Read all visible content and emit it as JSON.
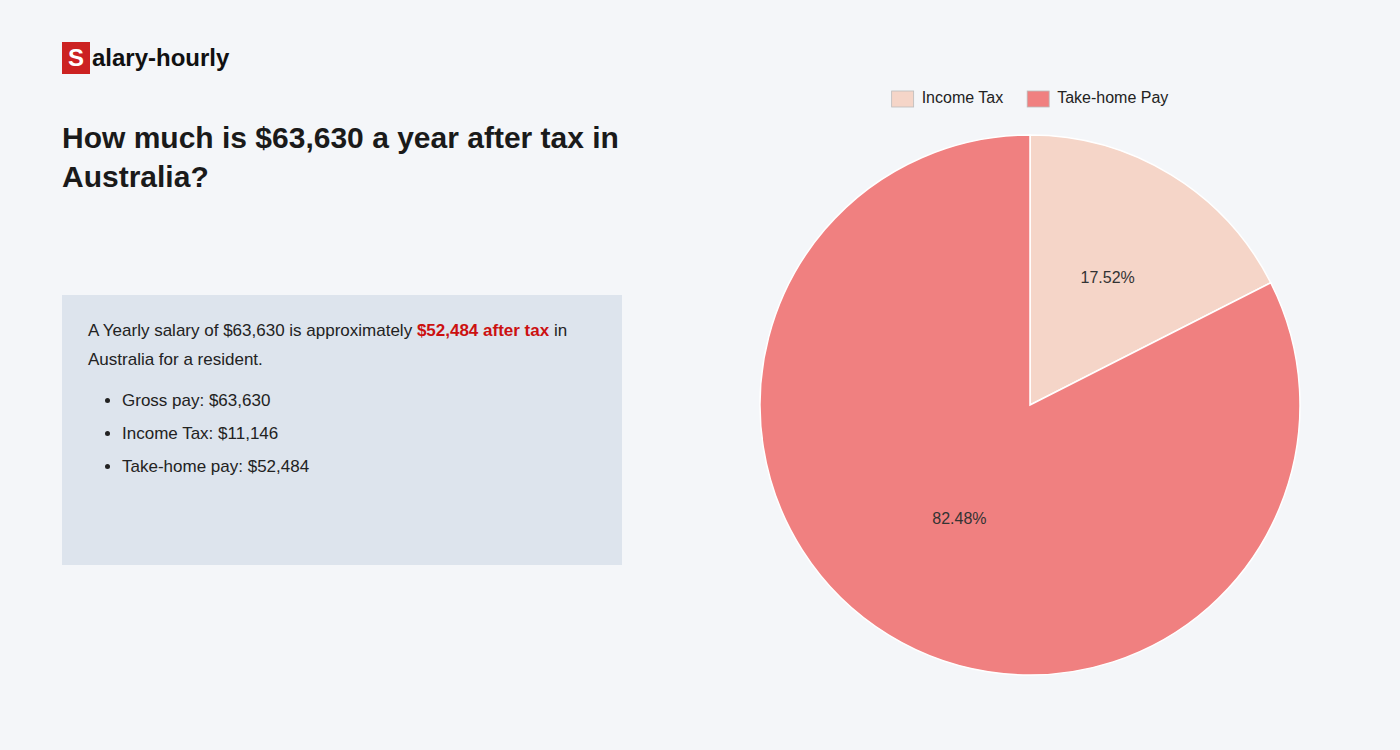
{
  "chart_data": {
    "type": "pie",
    "title": "How much is $63,630 a year after tax in Australia?",
    "categories": [
      "Income Tax",
      "Take-home Pay"
    ],
    "values": [
      17.52,
      82.48
    ],
    "value_labels": [
      "17.52%",
      "82.48%"
    ],
    "colors": [
      "#f5d5c8",
      "#f08080"
    ],
    "data_labels": true,
    "legend": "top",
    "annotations": [
      "S",
      "alary-hourly",
      "A Yearly salary of $63,630 is approximately ",
      "$52,484 after tax",
      " in",
      "Australia for a resident.",
      "Gross pay: $63,630",
      "Income Tax: $11,146",
      "Take-home pay: $52,484"
    ]
  }
}
